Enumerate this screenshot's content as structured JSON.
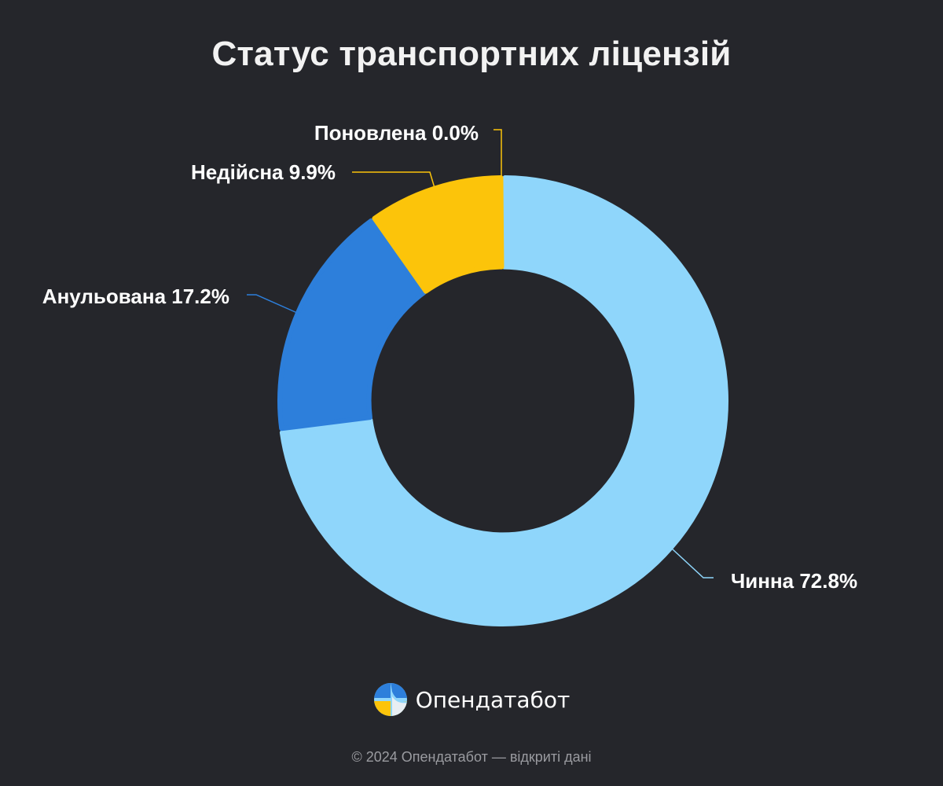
{
  "colors": {
    "background": "#25262b",
    "valid": "#8fd6fb",
    "annulled": "#2d7fdb",
    "invalid": "#fcc40a",
    "renewed": "#fcc40a"
  },
  "chart_data": {
    "type": "pie",
    "title": "Статус транспортних ліцензій",
    "legend": "none",
    "hole": 0.6,
    "slices": [
      {
        "name": "Чинна",
        "value": 72.8,
        "label": "Чинна 72.8%",
        "color": "#8fd6fb"
      },
      {
        "name": "Анульована",
        "value": 17.2,
        "label": "Анульована 17.2%",
        "color": "#2d7fdb"
      },
      {
        "name": "Недійсна",
        "value": 9.9,
        "label": "Недійсна 9.9%",
        "color": "#fcc40a"
      },
      {
        "name": "Поновлена",
        "value": 0.0,
        "label": "Поновлена 0.0%",
        "color": "#fcc40a"
      }
    ]
  },
  "brand": {
    "name": "Опендатабот",
    "logo_icon": "opendatabot-logo-icon"
  },
  "footer": {
    "text": "© 2024 Опендатабот — відкриті дані"
  }
}
